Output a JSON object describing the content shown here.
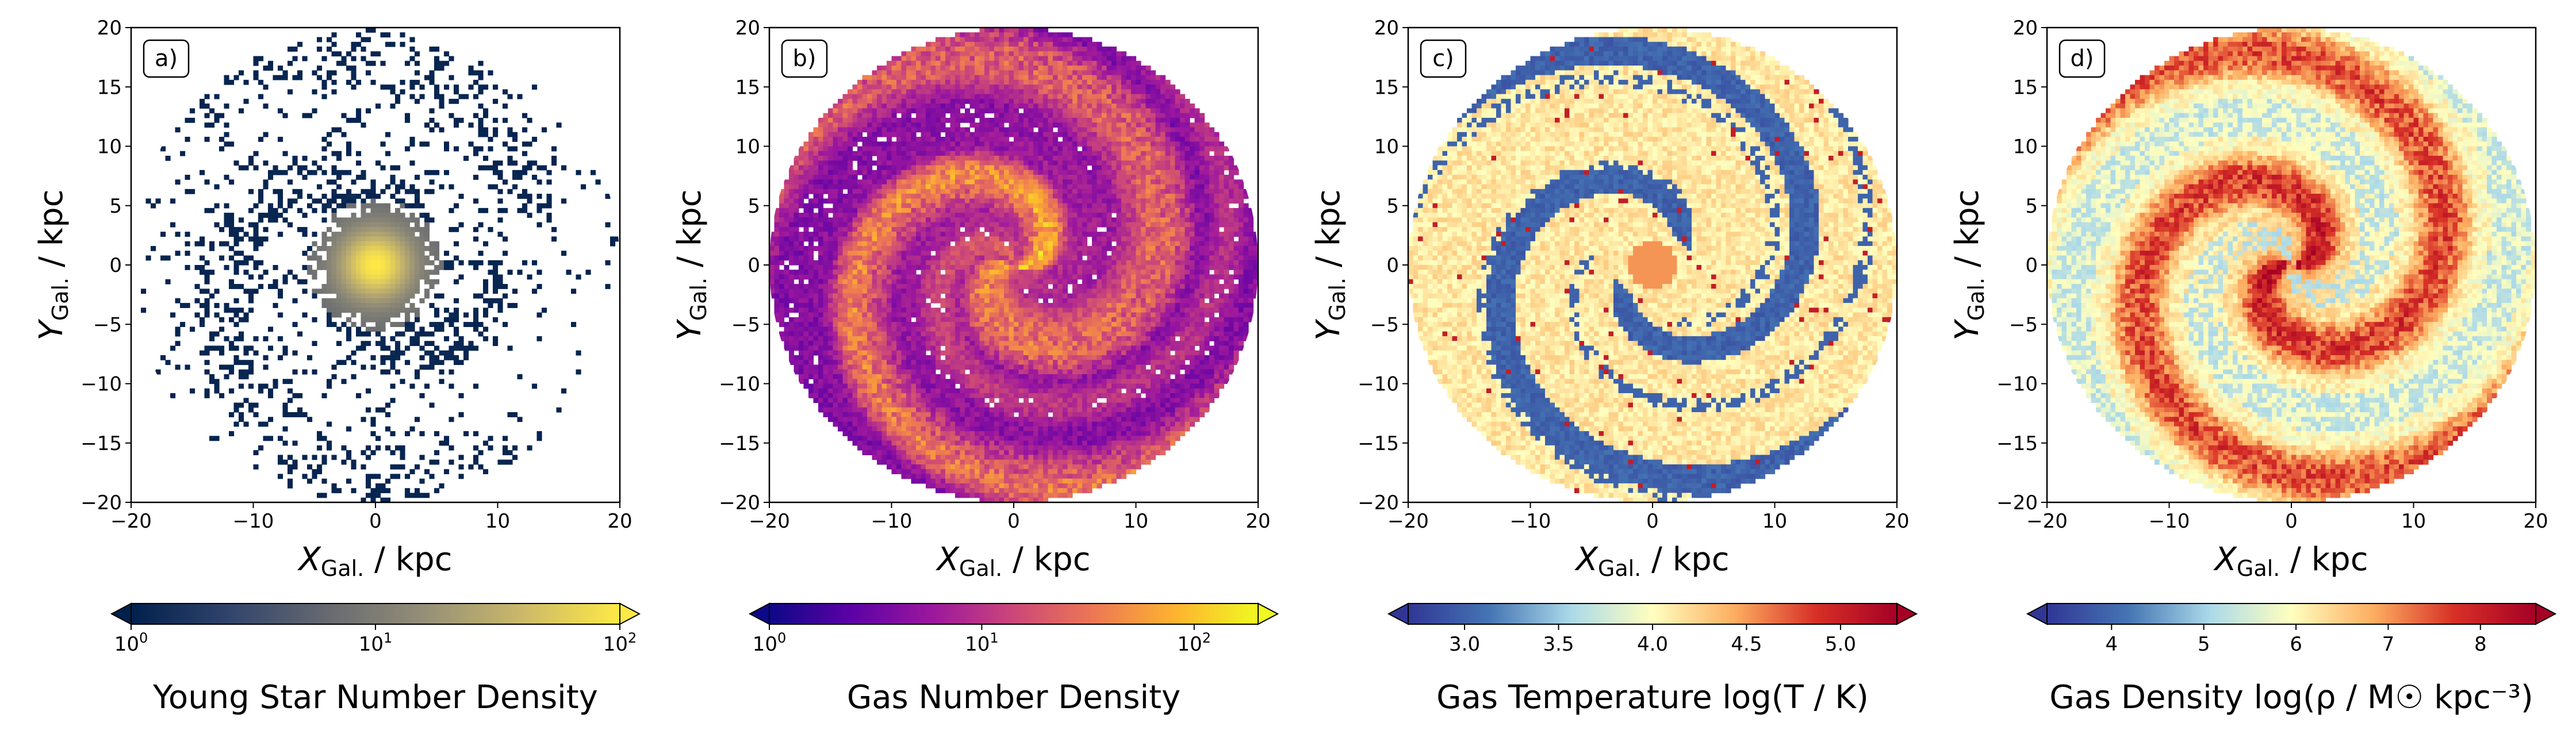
{
  "figure": {
    "panels": [
      {
        "label": "a)",
        "xlabel_main": "X",
        "xlabel_sub": "Gal.",
        "xlabel_unit": " / kpc",
        "ylabel_main": "Y",
        "ylabel_sub": "Gal.",
        "ylabel_unit": " / kpc",
        "colorbar_label": "Young Star Number Density",
        "colorbar_ticks": [
          "10^0",
          "10^1",
          "10^2"
        ]
      },
      {
        "label": "b)",
        "xlabel_main": "X",
        "xlabel_sub": "Gal.",
        "xlabel_unit": " / kpc",
        "ylabel_main": "Y",
        "ylabel_sub": "Gal.",
        "ylabel_unit": " / kpc",
        "colorbar_label": "Gas Number Density",
        "colorbar_ticks": [
          "10^0",
          "10^1",
          "10^2"
        ]
      },
      {
        "label": "c)",
        "xlabel_main": "X",
        "xlabel_sub": "Gal.",
        "xlabel_unit": " / kpc",
        "ylabel_main": "Y",
        "ylabel_sub": "Gal.",
        "ylabel_unit": " / kpc",
        "colorbar_label": "Gas Temperature log(T / K)",
        "colorbar_ticks": [
          "3.0",
          "3.5",
          "4.0",
          "4.5",
          "5.0"
        ]
      },
      {
        "label": "d)",
        "xlabel_main": "X",
        "xlabel_sub": "Gal.",
        "xlabel_unit": " / kpc",
        "ylabel_main": "Y",
        "ylabel_sub": "Gal.",
        "ylabel_unit": " / kpc",
        "colorbar_label": "Gas Density log(ρ / M☉ kpc⁻³)",
        "colorbar_ticks": [
          "4",
          "5",
          "6",
          "7",
          "8"
        ]
      }
    ]
  },
  "chart_data": [
    {
      "type": "heatmap",
      "label": "a)",
      "quantity": "Young Star Number Density",
      "xlim": [
        -20,
        20
      ],
      "ylim": [
        -20,
        20
      ],
      "xticks": [
        -20,
        -10,
        0,
        10,
        20
      ],
      "yticks": [
        -20,
        -15,
        -10,
        -5,
        0,
        5,
        10,
        15,
        20
      ],
      "colorbar": {
        "scale": "log",
        "range": [
          1,
          100
        ],
        "ticks": [
          1,
          10,
          100
        ],
        "colormap": "cividis",
        "extend": "both",
        "colors": [
          "#00204c",
          "#31446b",
          "#666970",
          "#958f78",
          "#cbb969",
          "#ffe945"
        ]
      }
    },
    {
      "type": "heatmap",
      "label": "b)",
      "quantity": "Gas Number Density",
      "xlim": [
        -20,
        20
      ],
      "ylim": [
        -20,
        20
      ],
      "xticks": [
        -20,
        -10,
        0,
        10,
        20
      ],
      "yticks": [
        -20,
        -15,
        -10,
        -5,
        0,
        5,
        10,
        15,
        20
      ],
      "colorbar": {
        "scale": "log",
        "range": [
          1,
          200
        ],
        "ticks": [
          1,
          10,
          100
        ],
        "colormap": "plasma",
        "extend": "both",
        "colors": [
          "#0d0887",
          "#5c01a6",
          "#9c179e",
          "#cc4778",
          "#ed7953",
          "#fdb42f",
          "#f0f921"
        ]
      }
    },
    {
      "type": "heatmap",
      "label": "c)",
      "quantity": "Gas Temperature log(T / K)",
      "xlim": [
        -20,
        20
      ],
      "ylim": [
        -20,
        20
      ],
      "xticks": [
        -20,
        -10,
        0,
        10,
        20
      ],
      "yticks": [
        -20,
        -15,
        -10,
        -5,
        0,
        5,
        10,
        15,
        20
      ],
      "colorbar": {
        "scale": "linear",
        "range": [
          2.7,
          5.3
        ],
        "ticks": [
          3.0,
          3.5,
          4.0,
          4.5,
          5.0
        ],
        "colormap": "RdYlBu_r",
        "extend": "both",
        "colors": [
          "#313695",
          "#4575b4",
          "#abd9e9",
          "#ffffbf",
          "#fdae61",
          "#d73027",
          "#a50026"
        ]
      }
    },
    {
      "type": "heatmap",
      "label": "d)",
      "quantity": "Gas Density log(ρ / M☉ kpc⁻³)",
      "xlim": [
        -20,
        20
      ],
      "ylim": [
        -20,
        20
      ],
      "xticks": [
        -20,
        -10,
        0,
        10,
        20
      ],
      "yticks": [
        -20,
        -15,
        -10,
        -5,
        0,
        5,
        10,
        15,
        20
      ],
      "colorbar": {
        "scale": "linear",
        "range": [
          3.3,
          8.6
        ],
        "ticks": [
          4,
          5,
          6,
          7,
          8
        ],
        "colormap": "RdYlBu_r",
        "extend": "both",
        "colors": [
          "#313695",
          "#4575b4",
          "#abd9e9",
          "#ffffbf",
          "#fdae61",
          "#d73027",
          "#a50026"
        ]
      }
    }
  ]
}
